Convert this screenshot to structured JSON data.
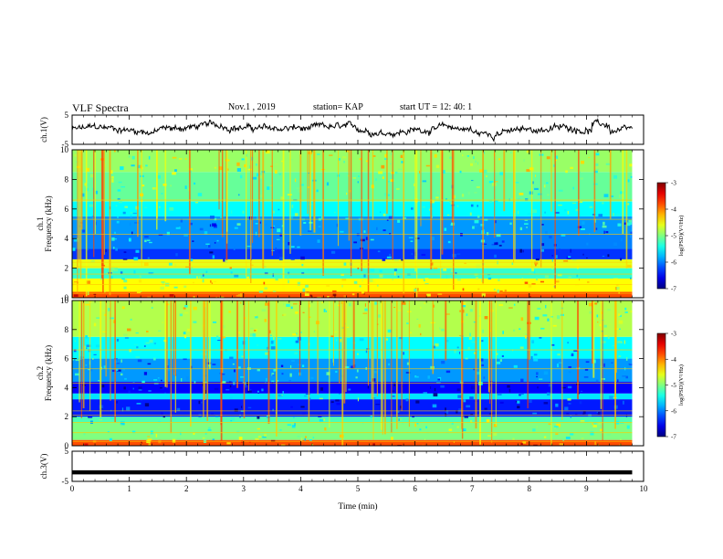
{
  "header": {
    "title": "VLF Spectra",
    "date": "Nov.1 , 2019",
    "station": "station= KAP",
    "start": "start UT = 12: 40: 1"
  },
  "chart_data": {
    "type": "heatmap",
    "x_axis": {
      "label": "Time (min)",
      "range": [
        0,
        10
      ],
      "ticks": [
        "0",
        "1",
        "2",
        "3",
        "4",
        "5",
        "6",
        "7",
        "8",
        "9",
        "10"
      ]
    },
    "data_end_min": 9.8,
    "panels": [
      {
        "name": "waveform_ch1",
        "type": "line",
        "ylabel": "ch.1(V)",
        "ylim": [
          -5,
          5
        ],
        "yticks": [
          "5",
          "-5"
        ],
        "series_color": "#000000"
      },
      {
        "name": "spectrogram_ch1",
        "type": "heatmap",
        "ylabel_top": "ch.1",
        "ylabel": "Frequency (kHz)",
        "ylim": [
          0,
          10
        ],
        "yticks": [
          "0",
          "2",
          "4",
          "6",
          "8",
          "10"
        ],
        "bands": [
          {
            "from": 0.0,
            "to": 0.4,
            "level": -3.8
          },
          {
            "from": 0.4,
            "to": 1.3,
            "level": -4.5
          },
          {
            "from": 1.3,
            "to": 2.0,
            "level": -5.3
          },
          {
            "from": 2.0,
            "to": 2.6,
            "level": -4.6
          },
          {
            "from": 2.6,
            "to": 3.3,
            "level": -6.3
          },
          {
            "from": 3.3,
            "to": 4.3,
            "level": -6.0
          },
          {
            "from": 4.3,
            "to": 5.5,
            "level": -5.9
          },
          {
            "from": 5.5,
            "to": 6.5,
            "level": -5.5
          },
          {
            "from": 6.5,
            "to": 8.5,
            "level": -5.1
          },
          {
            "from": 8.5,
            "to": 10.0,
            "level": -4.9
          }
        ],
        "colorbar": {
          "label": "log(PSD)(V²/Hz)",
          "range": [
            -7,
            -3
          ],
          "ticks": [
            "-3",
            "-4",
            "-5",
            "-6",
            "-7"
          ]
        }
      },
      {
        "name": "spectrogram_ch2",
        "type": "heatmap",
        "ylabel_top": "ch.2",
        "ylabel": "Frequency (kHz)",
        "ylim": [
          0,
          10
        ],
        "yticks": [
          "0",
          "2",
          "4",
          "6",
          "8",
          "10"
        ],
        "bands": [
          {
            "from": 0.0,
            "to": 0.4,
            "level": -3.8
          },
          {
            "from": 0.4,
            "to": 1.6,
            "level": -5.0
          },
          {
            "from": 1.6,
            "to": 2.0,
            "level": -5.2
          },
          {
            "from": 2.0,
            "to": 3.2,
            "level": -6.4
          },
          {
            "from": 3.2,
            "to": 3.6,
            "level": -5.6
          },
          {
            "from": 3.6,
            "to": 4.4,
            "level": -6.5
          },
          {
            "from": 4.4,
            "to": 6.0,
            "level": -5.9
          },
          {
            "from": 6.0,
            "to": 7.5,
            "level": -5.5
          },
          {
            "from": 7.5,
            "to": 10.0,
            "level": -4.8
          }
        ],
        "colorbar": {
          "label": "log(PSD)(V²/Hz)",
          "range": [
            -7,
            -3
          ],
          "ticks": [
            "-3",
            "-4",
            "-5",
            "-6",
            "-7"
          ]
        }
      },
      {
        "name": "waveform_ch3",
        "type": "line",
        "ylabel": "ch.3(V)",
        "ylim": [
          -5,
          5
        ],
        "yticks": [
          "5",
          "-5"
        ],
        "constant_value": -2,
        "series_color": "#000000"
      }
    ]
  }
}
